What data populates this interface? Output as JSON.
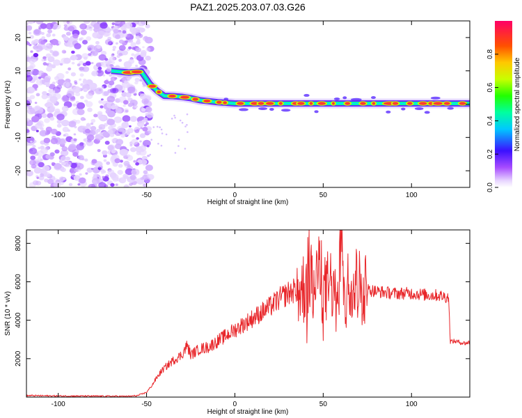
{
  "figure": {
    "title": "PAZ1.2025.203.07.03.G26"
  },
  "chart_data": [
    {
      "type": "heatmap",
      "title": "PAZ1.2025.203.07.03.G26",
      "xlabel": "Height of straight line (km)",
      "ylabel": "Frequency (Hz)",
      "xlim": [
        -118,
        133
      ],
      "ylim": [
        -25,
        25
      ],
      "xticks": [
        -100,
        -50,
        0,
        50,
        100
      ],
      "yticks": [
        -20,
        -10,
        0,
        10,
        20
      ],
      "grid": false,
      "colorbar": {
        "label": "Normalized spectral amplitude",
        "range": [
          0.0,
          1.0
        ],
        "ticks": [
          0.0,
          0.2,
          0.4,
          0.6,
          0.8
        ],
        "tick_labels": [
          "0.0",
          "0.2",
          "0.4",
          "0.6",
          "0.8"
        ],
        "colormap": "rainbow (white-violet-blue-cyan-green-yellow-orange-red-magenta)"
      },
      "ridge": {
        "description": "dominant frequency track vs height",
        "x": [
          -70,
          -60,
          -53,
          -48,
          -44,
          -40,
          -35,
          -30,
          -25,
          -20,
          -10,
          0,
          20,
          40,
          60,
          80,
          100,
          120,
          133
        ],
        "y": [
          10,
          9.5,
          9.8,
          6,
          4,
          2.5,
          2.4,
          2.2,
          1.8,
          1.2,
          0.6,
          0.2,
          0.2,
          0.2,
          0.2,
          0.2,
          0.2,
          0.2,
          0.2
        ]
      },
      "noise_region": {
        "x_range": [
          -118,
          -50
        ],
        "y_range": [
          -25,
          25
        ]
      }
    },
    {
      "type": "line",
      "xlabel": "Height of straight line (km)",
      "ylabel": "SNR (10 * v/v)",
      "xlim": [
        -118,
        133
      ],
      "ylim": [
        0,
        8700
      ],
      "xticks": [
        -100,
        -50,
        0,
        50,
        100
      ],
      "yticks": [
        2000,
        4000,
        6000,
        8000
      ],
      "grid": false,
      "series": [
        {
          "color": "#e8262a",
          "x": [
            -118,
            -100,
            -80,
            -60,
            -55,
            -50,
            -47,
            -45,
            -42,
            -40,
            -35,
            -30,
            -27,
            -25,
            -20,
            -15,
            -10,
            -5,
            0,
            5,
            10,
            15,
            20,
            25,
            30,
            35,
            40,
            42,
            45,
            48,
            50,
            55,
            58,
            60,
            62,
            65,
            70,
            75,
            80,
            90,
            100,
            110,
            115,
            120,
            121,
            122,
            125,
            130,
            133
          ],
          "y": [
            80,
            60,
            50,
            40,
            80,
            250,
            600,
            900,
            1300,
            1500,
            1900,
            2200,
            2700,
            2200,
            2500,
            2600,
            2900,
            3200,
            3500,
            3800,
            4100,
            4400,
            4700,
            5100,
            5400,
            5600,
            5700,
            6500,
            5300,
            6800,
            5400,
            6000,
            4200,
            8600,
            4500,
            6400,
            5800,
            5600,
            5500,
            5400,
            5400,
            5300,
            5300,
            5200,
            5200,
            2900,
            2900,
            2800,
            2850
          ]
        }
      ]
    }
  ]
}
